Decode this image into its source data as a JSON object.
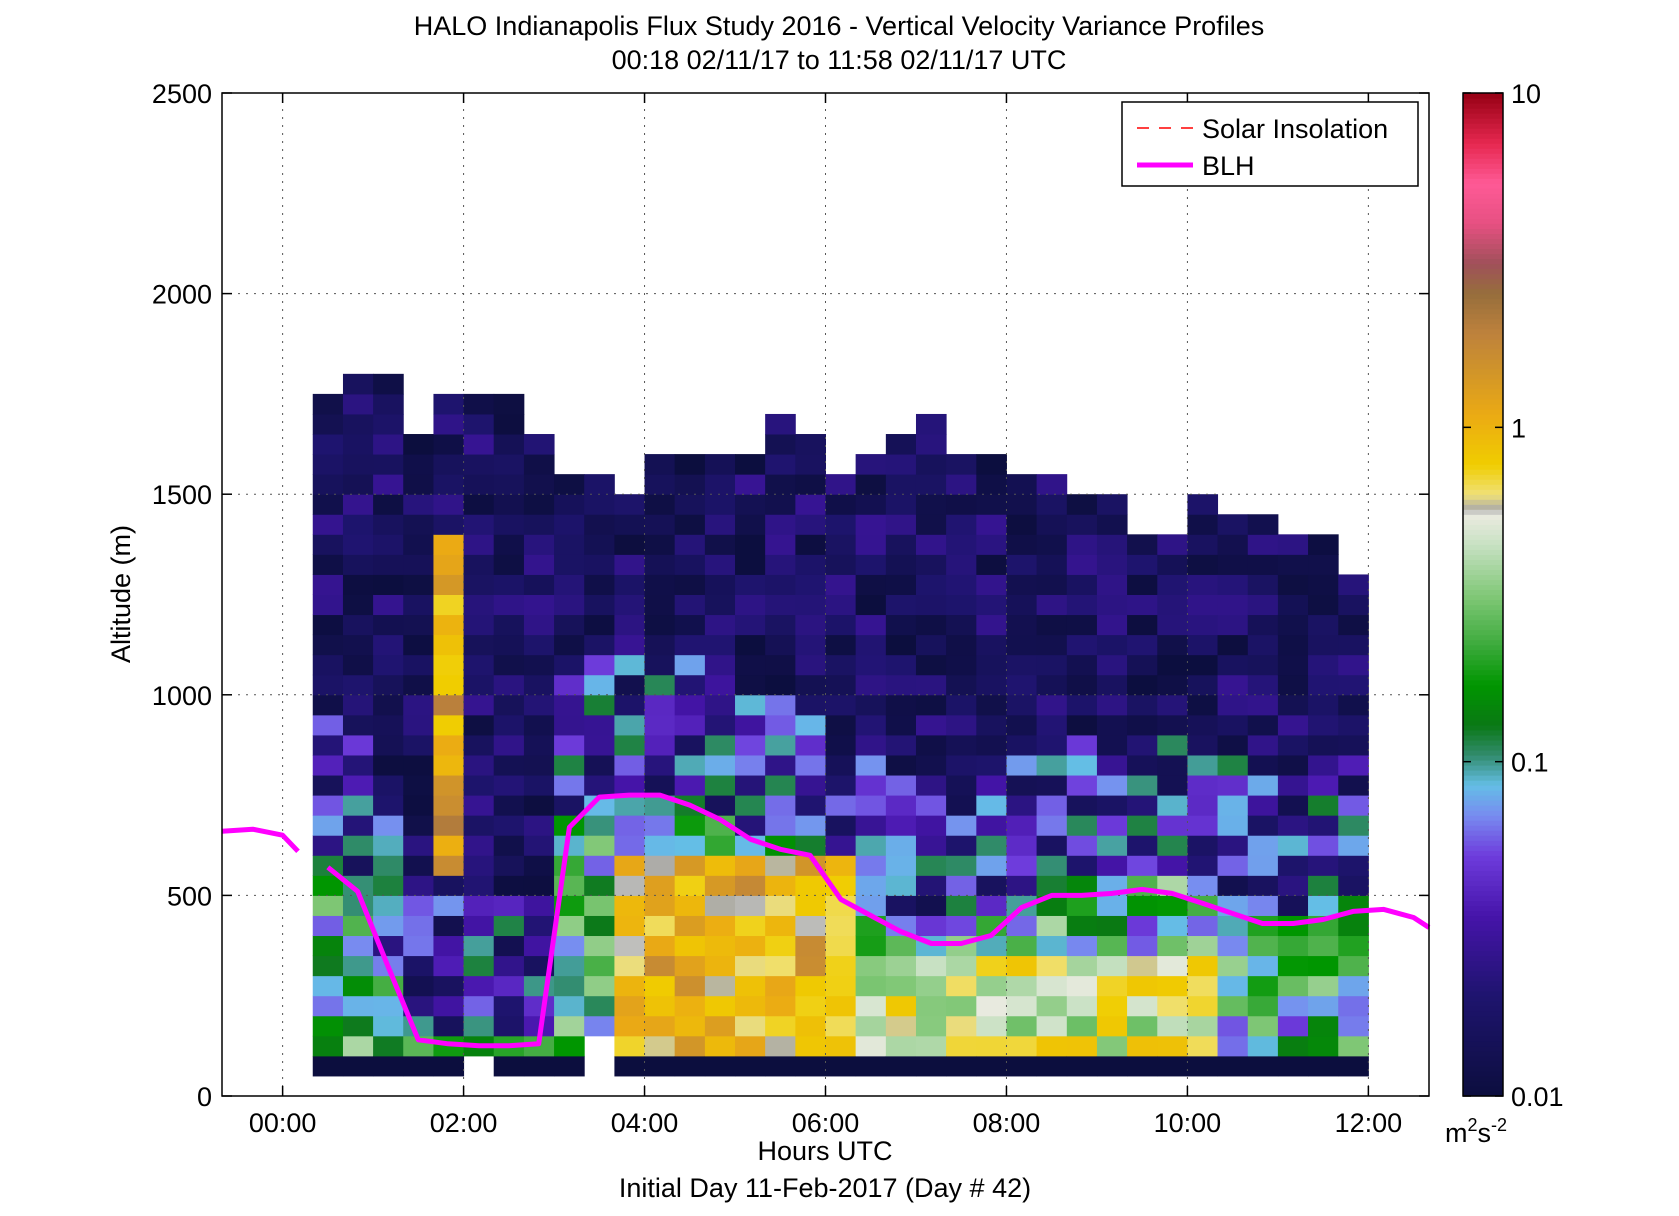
{
  "chart_data": {
    "type": "heatmap",
    "title": "HALO Indianapolis Flux Study 2016 - Vertical Velocity Variance Profiles",
    "subtitle": "00:18 02/11/17 to 11:58 02/11/17  UTC",
    "xlabel": "Hours UTC",
    "xlabel2": "Initial Day 11-Feb-2017 (Day # 42)",
    "ylabel": "Altitude (m)",
    "xlim": [
      -0.67,
      12.67
    ],
    "ylim": [
      0,
      2500
    ],
    "x_ticks": [
      0,
      2,
      4,
      6,
      8,
      10,
      12
    ],
    "x_tick_labels": [
      "00:00",
      "02:00",
      "04:00",
      "06:00",
      "08:00",
      "10:00",
      "12:00"
    ],
    "y_ticks": [
      0,
      500,
      1000,
      1500,
      2000,
      2500
    ],
    "y_tick_labels": [
      "0",
      "500",
      "1000",
      "1500",
      "2000",
      "2500"
    ],
    "grid": true,
    "legend_position": "top-right",
    "legend": [
      {
        "name": "Solar Insolation",
        "color": "#ff0000",
        "style": "dashed"
      },
      {
        "name": "BLH",
        "color": "#ff00ff",
        "style": "solid"
      }
    ],
    "colorbar": {
      "scale": "log",
      "range": [
        0.01,
        10
      ],
      "tick_values": [
        0.01,
        0.1,
        1,
        10
      ],
      "tick_labels": [
        "0.01",
        "0.1",
        "1",
        "10"
      ],
      "unit": "m²s⁻²",
      "unit_base": "m",
      "unit_exp1": "2",
      "unit_mid": "s",
      "unit_exp2": "-2"
    },
    "grid_cells": {
      "bin_hours": 0.333,
      "bin_meters": 50,
      "x0_hours": 0.333,
      "y0_meters": 50,
      "note_levels": "log10 of variance (m2/s2); columns are 20-minute bins from 00:20, rows 50 m bins from 50 m",
      "columns": [
        {
          "from": 0.333,
          "top": 1750
        },
        {
          "from": 0.667,
          "top": 1800
        },
        {
          "from": 1.0,
          "top": 1800
        },
        {
          "from": 1.333,
          "top": 1650
        },
        {
          "from": 1.667,
          "top": 1750
        },
        {
          "from": 2.0,
          "top": 1750
        },
        {
          "from": 2.333,
          "top": 1750
        },
        {
          "from": 2.667,
          "top": 1650
        },
        {
          "from": 3.0,
          "top": 1550
        },
        {
          "from": 3.333,
          "top": 1550
        },
        {
          "from": 3.667,
          "top": 1500
        },
        {
          "from": 4.0,
          "top": 1600
        },
        {
          "from": 4.333,
          "top": 1600
        },
        {
          "from": 4.667,
          "top": 1600
        },
        {
          "from": 5.0,
          "top": 1600
        },
        {
          "from": 5.333,
          "top": 1700
        },
        {
          "from": 5.667,
          "top": 1650
        },
        {
          "from": 6.0,
          "top": 1550
        },
        {
          "from": 6.333,
          "top": 1600
        },
        {
          "from": 6.667,
          "top": 1650
        },
        {
          "from": 7.0,
          "top": 1700
        },
        {
          "from": 7.333,
          "top": 1600
        },
        {
          "from": 7.667,
          "top": 1600
        },
        {
          "from": 8.0,
          "top": 1550
        },
        {
          "from": 8.333,
          "top": 1550
        },
        {
          "from": 8.667,
          "top": 1500
        },
        {
          "from": 9.0,
          "top": 1500
        },
        {
          "from": 9.333,
          "top": 1400
        },
        {
          "from": 9.667,
          "top": 1400
        },
        {
          "from": 10.0,
          "top": 1500
        },
        {
          "from": 10.333,
          "top": 1450
        },
        {
          "from": 10.667,
          "top": 1450
        },
        {
          "from": 11.0,
          "top": 1400
        },
        {
          "from": 11.333,
          "top": 1400
        },
        {
          "from": 11.667,
          "top": 1300
        }
      ],
      "profile_levels": [
        {
          "from": 50,
          "to": 100,
          "level": -2.0
        },
        {
          "from": 100,
          "to": 150,
          "level": -1.0
        }
      ],
      "yellow_core": [
        {
          "x_from": 3.667,
          "x_to": 6.333,
          "y_from": 100,
          "y_to": 600,
          "level": 0.0
        },
        {
          "x_from": 6.333,
          "x_to": 10.333,
          "y_from": 100,
          "y_to": 350,
          "level": -0.3
        },
        {
          "x_from": 1.667,
          "x_to": 2.0,
          "y_from": 550,
          "y_to": 1400,
          "level": 0.1
        }
      ]
    },
    "series": [
      {
        "name": "BLH",
        "x": [
          -0.67,
          -0.33,
          0.0,
          0.17,
          0.5,
          0.83,
          1.17,
          1.5,
          1.83,
          2.17,
          2.5,
          2.83,
          3.17,
          3.5,
          3.83,
          4.17,
          4.5,
          4.83,
          5.17,
          5.5,
          5.83,
          6.17,
          6.5,
          6.83,
          7.17,
          7.5,
          7.83,
          8.17,
          8.5,
          8.83,
          9.17,
          9.5,
          9.83,
          10.17,
          10.5,
          10.83,
          11.17,
          11.5,
          11.83,
          12.17,
          12.5,
          12.67
        ],
        "y": [
          660,
          665,
          650,
          610,
          570,
          510,
          320,
          140,
          130,
          125,
          125,
          130,
          670,
          745,
          750,
          750,
          725,
          690,
          640,
          615,
          600,
          490,
          450,
          410,
          380,
          380,
          400,
          470,
          500,
          500,
          505,
          515,
          505,
          480,
          455,
          430,
          430,
          440,
          460,
          465,
          445,
          420
        ],
        "gaps_after_x": [
          0.17
        ]
      }
    ]
  }
}
